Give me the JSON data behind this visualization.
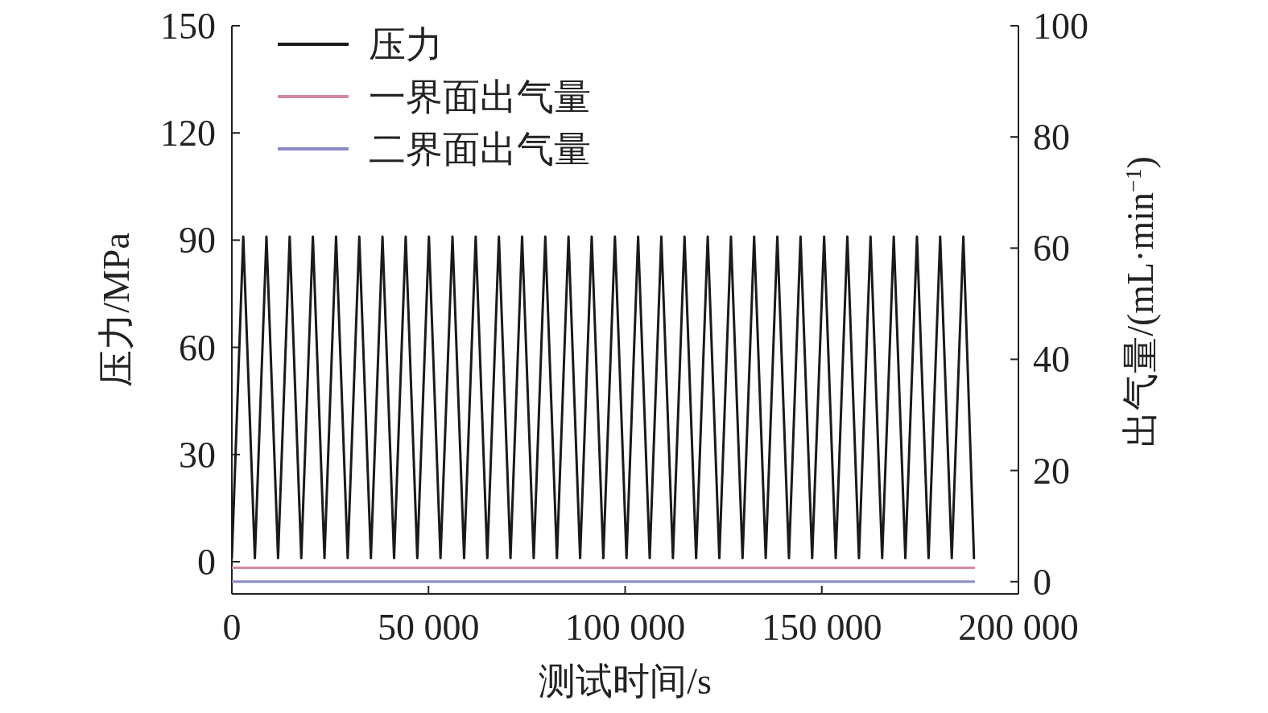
{
  "chart_data": {
    "type": "line",
    "xlabel": "测试时间/s",
    "ylabel": "压力/MPa",
    "y2label": "出气量/(mL·min$^{−1}$)",
    "xlim": [
      0,
      200000
    ],
    "xticks": [
      0,
      {
        "value": 50000,
        "label": "50 000"
      },
      {
        "value": 100000,
        "label": "100 000"
      },
      {
        "value": 150000,
        "label": "150 000"
      },
      {
        "value": 200000,
        "label": "200 000"
      }
    ],
    "ylim": [
      -9,
      150
    ],
    "yticks": [
      0,
      30,
      60,
      90,
      120,
      150
    ],
    "y2lim": [
      -2.2,
      100
    ],
    "y2ticks": [
      0,
      20,
      40,
      60,
      80,
      100
    ],
    "legend": "top left",
    "grid": false,
    "marker": "none",
    "line_style": "solid",
    "series": [
      {
        "name": "压力",
        "color": "#1a1a1a",
        "x": [
          0,
          2900,
          5850,
          8800,
          11750,
          14700,
          17650,
          20600,
          23550,
          26500,
          29450,
          32400,
          35350,
          38300,
          41250,
          44200,
          47150,
          50100,
          53050,
          56100,
          59050,
          62000,
          64950,
          67900,
          70850,
          73800,
          76750,
          79700,
          82650,
          85600,
          88550,
          91500,
          94450,
          97400,
          100350,
          103300,
          106250,
          109200,
          112150,
          115100,
          118050,
          121000,
          123950,
          126900,
          129850,
          132800,
          135750,
          138700,
          141650,
          144600,
          147550,
          150600,
          153550,
          156500,
          159450,
          162400,
          165350,
          168300,
          171250,
          174200,
          177150,
          180100,
          183050,
          186000,
          188700
        ],
        "values": [
          1,
          91,
          1,
          91,
          1,
          91,
          1,
          91,
          1,
          91,
          1,
          91,
          1,
          91,
          1,
          91,
          1,
          91,
          1,
          91,
          1,
          91,
          1,
          91,
          1,
          91,
          1,
          91,
          1,
          91,
          1,
          91,
          1,
          91,
          1,
          91,
          1,
          91,
          1,
          91,
          1,
          91,
          1,
          91,
          1,
          91,
          1,
          91,
          1,
          91,
          1,
          91,
          1,
          91,
          1,
          91,
          1,
          91,
          1,
          91,
          1,
          91,
          1,
          91,
          1
        ]
      },
      {
        "name": "一界面出气量",
        "color": "#d48a9e",
        "axis": "y2",
        "x": [
          0,
          188700
        ],
        "values": [
          2.5,
          2.5
        ]
      },
      {
        "name": "二界面出气量",
        "color": "#8a8ac8",
        "axis": "y2",
        "x": [
          0,
          188700
        ],
        "values": [
          0,
          0
        ]
      }
    ]
  }
}
